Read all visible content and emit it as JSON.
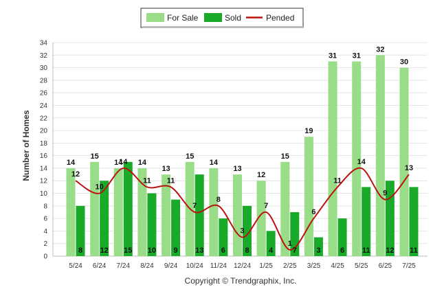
{
  "colors": {
    "for_sale": "#99dd88",
    "sold": "#1aaa2a",
    "pended": "#bb1111",
    "grid": "#e4e4e4",
    "axis": "#bbbbbb"
  },
  "credit": "Copyright © Trendgraphix, Inc.",
  "chart_data": {
    "type": "bar",
    "categories": [
      "5/24",
      "6/24",
      "7/24",
      "8/24",
      "9/24",
      "10/24",
      "11/24",
      "12/24",
      "1/25",
      "2/25",
      "3/25",
      "4/25",
      "5/25",
      "6/25",
      "7/25"
    ],
    "series": [
      {
        "name": "For Sale",
        "type": "bar",
        "values": [
          14,
          15,
          14,
          14,
          13,
          15,
          14,
          13,
          12,
          15,
          19,
          31,
          31,
          32,
          30
        ]
      },
      {
        "name": "Sold",
        "type": "bar",
        "values": [
          8,
          12,
          15,
          10,
          9,
          13,
          6,
          8,
          4,
          7,
          3,
          6,
          11,
          12,
          11
        ]
      },
      {
        "name": "Pended",
        "type": "line",
        "values": [
          12,
          10,
          14,
          11,
          11,
          7,
          8,
          3,
          7,
          1,
          6,
          11,
          14,
          9,
          13
        ]
      }
    ],
    "ylabel": "Number of Homes",
    "xlabel": "",
    "ylim": [
      0,
      34
    ],
    "yticks": [
      0,
      2,
      4,
      6,
      8,
      10,
      12,
      14,
      16,
      18,
      20,
      22,
      24,
      26,
      28,
      30,
      32,
      34
    ],
    "legend_position": "top-center",
    "grid": true
  }
}
